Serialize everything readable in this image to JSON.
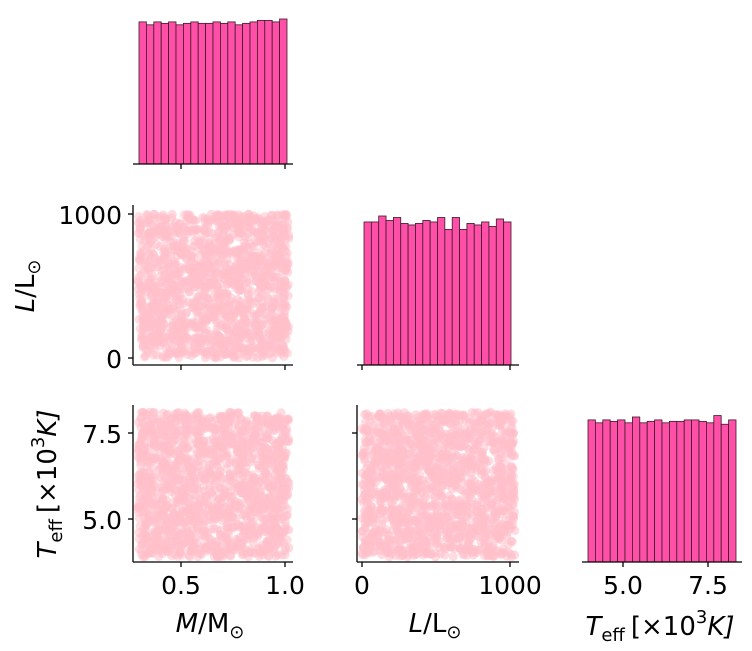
{
  "chart_data": {
    "type": "pairplot",
    "variables": [
      {
        "key": "M",
        "axis_label_main": "M",
        "axis_label_unit": "/M",
        "axis_label_sun": "⊙",
        "range": [
          0.3,
          1.0
        ],
        "ticks": [
          0.5,
          1.0
        ],
        "tick_labels": [
          "0.5",
          "1.0"
        ]
      },
      {
        "key": "L",
        "axis_label_main": "L",
        "axis_label_unit": "/L",
        "axis_label_sun": "⊙",
        "range": [
          0,
          1000
        ],
        "ticks": [
          0,
          1000
        ],
        "tick_labels": [
          "0",
          "1000"
        ]
      },
      {
        "key": "Teff",
        "axis_label_main": "T",
        "axis_label_sub": "eff",
        "axis_label_rest": "[×10",
        "axis_label_sup": "3",
        "axis_label_end": "K]",
        "range": [
          4.0,
          8.0
        ],
        "ticks": [
          5.0,
          7.5
        ],
        "tick_labels": [
          "5.0",
          "7.5"
        ]
      }
    ],
    "histograms": {
      "M": {
        "bins": 20,
        "relative_heights": [
          0.98,
          0.96,
          0.98,
          0.97,
          0.98,
          0.96,
          0.97,
          0.98,
          0.97,
          0.97,
          0.98,
          0.97,
          0.98,
          0.96,
          0.97,
          0.98,
          0.99,
          0.99,
          0.98,
          1.0
        ]
      },
      "L": {
        "bins": 20,
        "relative_heights": [
          0.96,
          0.96,
          1.0,
          0.97,
          0.99,
          0.95,
          0.94,
          0.95,
          0.97,
          0.96,
          0.99,
          0.91,
          0.99,
          0.91,
          0.95,
          0.94,
          0.96,
          0.93,
          0.98,
          0.96
        ]
      },
      "Teff": {
        "bins": 20,
        "relative_heights": [
          0.98,
          0.96,
          0.98,
          0.97,
          0.98,
          0.96,
          1.0,
          0.96,
          0.97,
          0.98,
          0.96,
          0.97,
          0.97,
          0.98,
          0.98,
          0.97,
          0.96,
          1.01,
          0.95,
          0.98
        ]
      }
    },
    "scatter_samples": 1500,
    "scatter_style": "uniform random samples filling full ranges"
  },
  "colors": {
    "hist_fill": "#ff4fa7",
    "hist_edge": "#3a1a2a",
    "scatter": "#ffc0cb",
    "axis": "#000000"
  }
}
